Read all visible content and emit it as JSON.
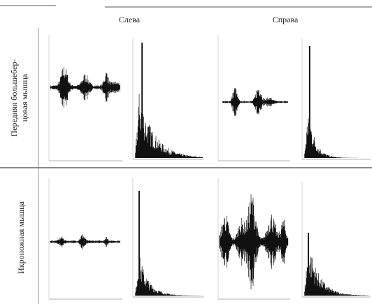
{
  "header": {
    "columns": [
      "Слева",
      "Справа"
    ]
  },
  "rows": [
    {
      "lines": [
        "Передняя большебер-",
        "цовая мышца"
      ]
    },
    {
      "lines": [
        "Икроножная мышца"
      ]
    }
  ]
}
